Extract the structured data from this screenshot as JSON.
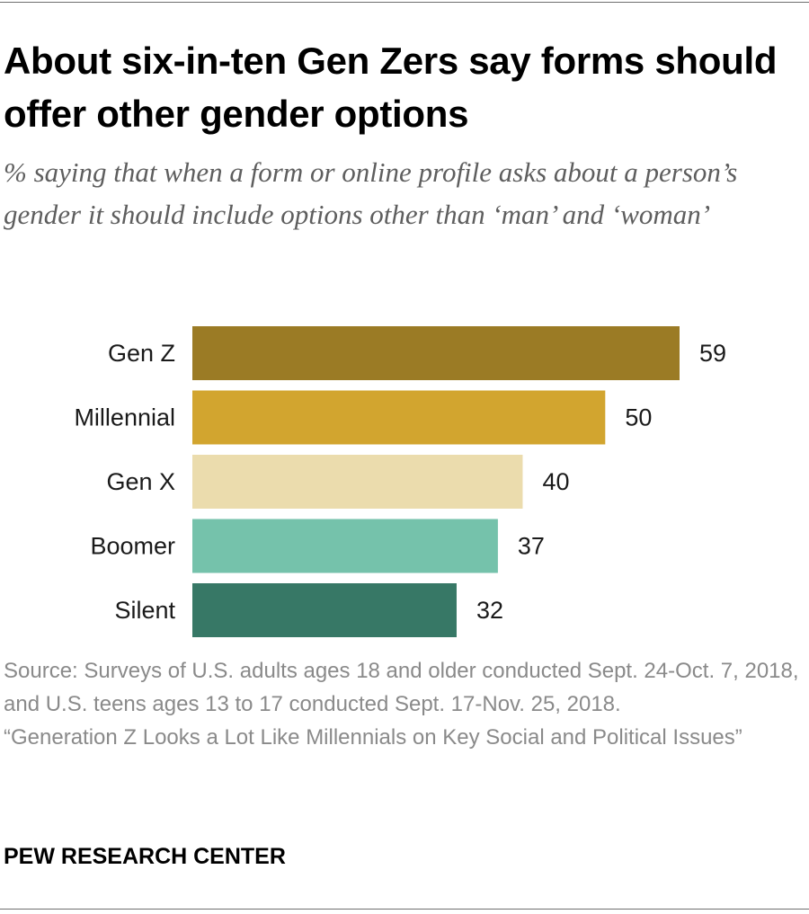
{
  "header": {
    "title": "About six-in-ten Gen Zers say forms should offer other gender options",
    "subtitle": "% saying that when a form or online profile asks about a person’s gender it should include options other than ‘man’ and ‘woman’"
  },
  "chart_data": {
    "type": "bar",
    "orientation": "horizontal",
    "title": "About six-in-ten Gen Zers say forms should offer other gender options",
    "subtitle": "% saying that when a form or online profile asks about a person’s gender it should include options other than ‘man’ and ‘woman’",
    "categories": [
      "Gen Z",
      "Millennial",
      "Gen X",
      "Boomer",
      "Silent"
    ],
    "values": [
      59,
      50,
      40,
      37,
      32
    ],
    "colors": [
      "#9b7b25",
      "#d2a52f",
      "#ebdcad",
      "#75c2ab",
      "#377866"
    ],
    "xlabel": "",
    "ylabel": "",
    "xlim": [
      0,
      100
    ],
    "grid": false,
    "legend": "none"
  },
  "footer": {
    "source": "Source: Surveys of U.S. adults ages 18 and older conducted Sept. 24-Oct. 7, 2018, and U.S. teens ages 13 to 17 conducted Sept. 17-Nov. 25, 2018.",
    "report": "“Generation Z Looks a Lot Like Millennials on Key Social and Political Issues”",
    "credit": "PEW RESEARCH CENTER"
  }
}
